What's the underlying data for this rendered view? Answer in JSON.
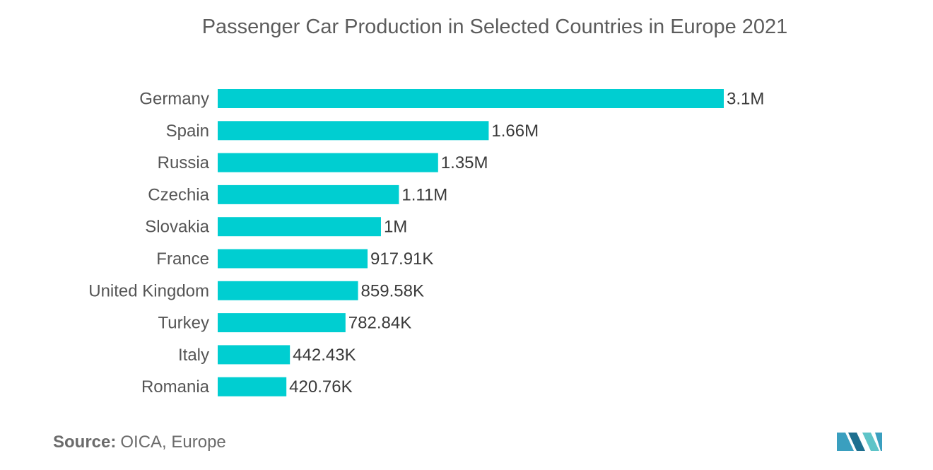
{
  "chart_data": {
    "type": "bar",
    "orientation": "horizontal",
    "title": "Passenger Car Production in Selected Countries in Europe 2021",
    "categories": [
      "Germany",
      "Spain",
      "Russia",
      "Czechia",
      "Slovakia",
      "France",
      "United Kingdom",
      "Turkey",
      "Italy",
      "Romania"
    ],
    "values": [
      3100000,
      1660000,
      1350000,
      1110000,
      1000000,
      917910,
      859580,
      782840,
      442430,
      420760
    ],
    "data_labels": [
      "3.1M",
      "1.66M",
      "1.35M",
      "1.11M",
      "1M",
      "917.91K",
      "859.58K",
      "782.84K",
      "442.43K",
      "420.76K"
    ],
    "xlim": [
      0,
      3100000
    ],
    "grid": false,
    "legend": "none",
    "bar_color": "#00ced1"
  },
  "source": {
    "label": "Source:",
    "text": "OICA, Europe"
  },
  "logo": {
    "icon": "mordor-intelligence-logo-icon",
    "colors": [
      "#3a9fbf",
      "#1e6f8f",
      "#5ec4c8"
    ]
  }
}
